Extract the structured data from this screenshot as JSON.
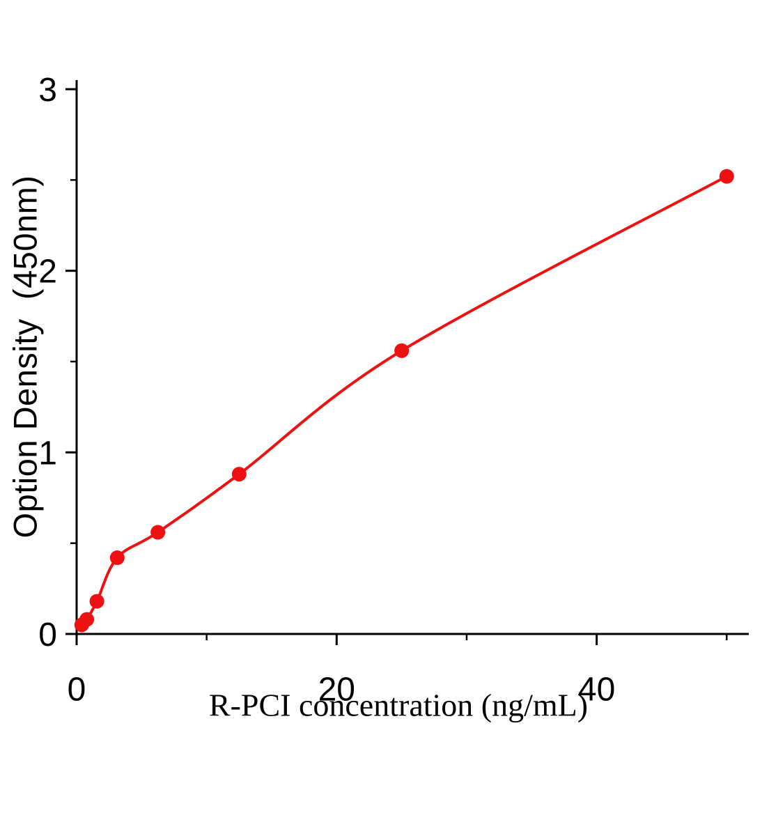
{
  "chart_data": {
    "type": "scatter",
    "title": "",
    "xlabel": "R-PCI concentration (ng/mL)",
    "ylabel": "Option Density  (450nm)",
    "x": [
      0.39,
      0.78,
      1.56,
      3.125,
      6.25,
      12.5,
      25,
      50
    ],
    "y": [
      0.05,
      0.08,
      0.18,
      0.42,
      0.56,
      0.88,
      1.56,
      2.52
    ],
    "fit": "smooth curve through data points",
    "xlim": [
      0,
      51.7
    ],
    "ylim": [
      0,
      3.05
    ],
    "x_major_ticks": [
      0,
      20,
      40
    ],
    "x_minor_ticks": [
      10,
      30,
      50
    ],
    "y_major_ticks": [
      0,
      1,
      2,
      3
    ],
    "y_minor_ticks": [
      0.5,
      1.5,
      2.5
    ],
    "point_color": "#ee1111",
    "line_color": "#ee1111",
    "axis_color": "#000000",
    "grid": false,
    "legend_position": "none"
  }
}
